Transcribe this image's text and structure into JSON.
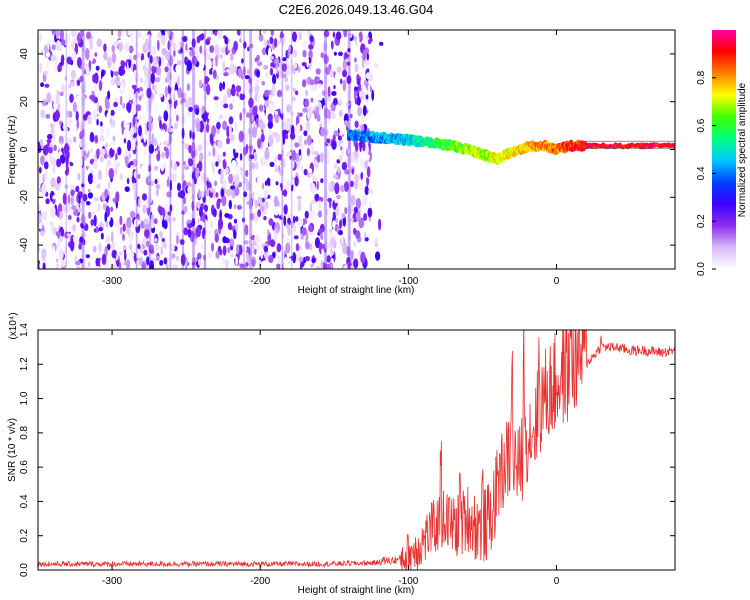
{
  "figure": {
    "title": "C2E6.2026.049.13.46.G04"
  },
  "chart_data": [
    {
      "type": "heatmap",
      "title": "C2E6.2026.049.13.46.G04",
      "xlabel": "Height of straight line (km)",
      "ylabel": "Frequency (Hz)",
      "xlim": [
        -350,
        80
      ],
      "ylim": [
        -50,
        50
      ],
      "xticks": [
        -300,
        -200,
        -100,
        0
      ],
      "xtick_labels": [
        "-300",
        "-200",
        "-100",
        "0"
      ],
      "yticks": [
        -40,
        -20,
        0,
        20,
        40
      ],
      "ytick_labels": [
        "-40",
        "-20",
        "0",
        "20",
        "40"
      ],
      "colorbar": {
        "label": "Normalized spectral amplitude",
        "range": [
          0,
          1
        ],
        "ticks": [
          0.0,
          0.2,
          0.4,
          0.6,
          0.8
        ],
        "tick_labels": [
          "0.0",
          "0.2",
          "0.4",
          "0.6",
          "0.8"
        ],
        "colormap": "rainbow",
        "stops": [
          "#ffffff",
          "#d8b8f8",
          "#8c2cf0",
          "#3a00ff",
          "#0040ff",
          "#00c8ff",
          "#00ff80",
          "#40ff00",
          "#ffff00",
          "#ff8000",
          "#ff0000",
          "#ff00a0"
        ]
      },
      "ridge": {
        "x": [
          -140,
          -120,
          -100,
          -90,
          -80,
          -70,
          -60,
          -50,
          -40,
          -30,
          -20,
          -10,
          0,
          10,
          20,
          40,
          60,
          80
        ],
        "frequency": [
          6,
          5,
          4,
          3,
          2.5,
          1.5,
          0,
          -2,
          -4,
          -1,
          1,
          2,
          0,
          1.5,
          1.5,
          1.5,
          1.5,
          2
        ],
        "amplitude": [
          0.45,
          0.5,
          0.55,
          0.6,
          0.65,
          0.7,
          0.75,
          0.75,
          0.8,
          0.8,
          0.85,
          0.9,
          0.9,
          0.95,
          1.0,
          1.0,
          1.0,
          1.0
        ]
      },
      "noise_region_x": [
        -350,
        -125
      ]
    },
    {
      "type": "line",
      "xlabel": "Height of straight line (km)",
      "ylabel": "SNR (10 * v/v)",
      "exponent_label": "(x10⁴)",
      "xlim": [
        -350,
        80
      ],
      "ylim": [
        0,
        1.4
      ],
      "xticks": [
        -300,
        -200,
        -100,
        0
      ],
      "xtick_labels": [
        "-300",
        "-200",
        "-100",
        "0"
      ],
      "yticks": [
        0.0,
        0.2,
        0.4,
        0.6,
        0.8,
        1.0,
        1.2,
        1.4
      ],
      "ytick_labels": [
        "0.0",
        "0.2",
        "0.4",
        "0.6",
        "0.8",
        "1.0",
        "1.2",
        "1.4"
      ],
      "line_color": "#e83030",
      "series": [
        {
          "name": "SNR",
          "x": [
            -350,
            -300,
            -250,
            -200,
            -160,
            -130,
            -110,
            -100,
            -95,
            -90,
            -85,
            -80,
            -75,
            -70,
            -65,
            -60,
            -55,
            -50,
            -45,
            -40,
            -35,
            -30,
            -25,
            -20,
            -15,
            -10,
            -5,
            0,
            5,
            10,
            15,
            20,
            25,
            30,
            40,
            50,
            60,
            70,
            80
          ],
          "y": [
            0.02,
            0.02,
            0.02,
            0.02,
            0.02,
            0.025,
            0.03,
            0.05,
            0.08,
            0.12,
            0.18,
            0.22,
            0.25,
            0.2,
            0.2,
            0.25,
            0.2,
            0.18,
            0.22,
            0.4,
            0.55,
            0.6,
            0.5,
            0.7,
            0.75,
            0.9,
            0.95,
            1.0,
            1.05,
            1.1,
            1.15,
            1.2,
            1.25,
            1.3,
            1.3,
            1.28,
            1.28,
            1.27,
            1.28
          ]
        }
      ],
      "peaks": [
        {
          "x": -78,
          "y": 0.68
        },
        {
          "x": -65,
          "y": 0.45
        },
        {
          "x": -50,
          "y": 0.35
        },
        {
          "x": -38,
          "y": 0.6
        },
        {
          "x": -30,
          "y": 1.05
        },
        {
          "x": -22,
          "y": 1.15
        },
        {
          "x": -12,
          "y": 1.1
        },
        {
          "x": 10,
          "y": 1.4
        },
        {
          "x": 30,
          "y": 1.35
        }
      ]
    }
  ]
}
